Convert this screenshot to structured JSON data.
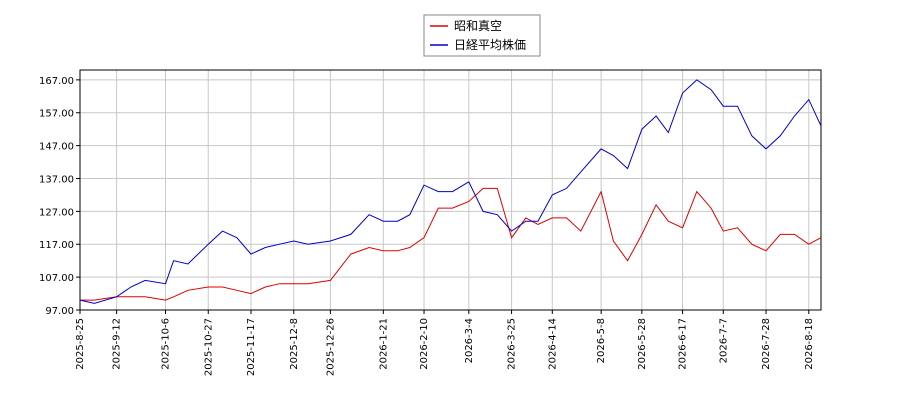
{
  "chart_data": {
    "type": "line",
    "x": [
      "2025-8-25",
      "2025-9-1",
      "2025-9-12",
      "2025-9-19",
      "2025-9-26",
      "2025-10-6",
      "2025-10-10",
      "2025-10-17",
      "2025-10-27",
      "2025-11-3",
      "2025-11-10",
      "2025-11-17",
      "2025-11-24",
      "2025-12-1",
      "2025-12-8",
      "2025-12-15",
      "2025-12-26",
      "2026-1-5",
      "2026-1-14",
      "2026-1-21",
      "2026-1-28",
      "2026-2-3",
      "2026-2-10",
      "2026-2-17",
      "2026-2-24",
      "2026-3-4",
      "2026-3-11",
      "2026-3-18",
      "2026-3-25",
      "2026-4-1",
      "2026-4-7",
      "2026-4-14",
      "2026-4-21",
      "2026-4-28",
      "2026-5-8",
      "2026-5-14",
      "2026-5-21",
      "2026-5-28",
      "2026-6-4",
      "2026-6-10",
      "2026-6-17",
      "2026-6-24",
      "2026-7-1",
      "2026-7-7",
      "2026-7-14",
      "2026-7-21",
      "2026-7-28",
      "2026-8-4",
      "2026-8-11",
      "2026-8-18",
      "2026-8-24"
    ],
    "series": [
      {
        "name": "昭和真空",
        "color": "#dd0000",
        "values": [
          100,
          100,
          101,
          101,
          101,
          100,
          101,
          103,
          104,
          104,
          103,
          102,
          104,
          105,
          105,
          105,
          106,
          114,
          116,
          115,
          115,
          116,
          119,
          128,
          128,
          130,
          134,
          134,
          119,
          125,
          123,
          125,
          125,
          121,
          133,
          118,
          112,
          120,
          129,
          124,
          122,
          133,
          128,
          121,
          122,
          117,
          115,
          120,
          120,
          117,
          119
        ]
      },
      {
        "name": "日経平均株価",
        "color": "#0000cc",
        "values": [
          100,
          99,
          101,
          104,
          106,
          105,
          112,
          111,
          117,
          121,
          119,
          114,
          116,
          117,
          118,
          117,
          118,
          120,
          126,
          124,
          124,
          126,
          135,
          133,
          133,
          136,
          127,
          126,
          121,
          124,
          124,
          132,
          134,
          139,
          146,
          144,
          140,
          152,
          156,
          151,
          163,
          167,
          164,
          159,
          159,
          150,
          146,
          150,
          156,
          161,
          153
        ]
      }
    ],
    "xlim": [
      "2025-8-25",
      "2026-8-24"
    ],
    "xticks": [
      "2025-8-25",
      "2025-9-12",
      "2025-10-6",
      "2025-10-27",
      "2025-11-17",
      "2025-12-8",
      "2025-12-26",
      "2026-1-21",
      "2026-2-10",
      "2026-3-4",
      "2026-3-25",
      "2026-4-14",
      "2026-5-8",
      "2026-5-28",
      "2026-6-17",
      "2026-7-7",
      "2026-7-28",
      "2026-8-18"
    ],
    "ylim": [
      97,
      170
    ],
    "yticks": [
      {
        "value": 97,
        "label": "97.00"
      },
      {
        "value": 107,
        "label": "107.00"
      },
      {
        "value": 117,
        "label": "117.00"
      },
      {
        "value": 127,
        "label": "127.00"
      },
      {
        "value": 137,
        "label": "137.00"
      },
      {
        "value": 147,
        "label": "147.00"
      },
      {
        "value": 157,
        "label": "157.00"
      },
      {
        "value": 167,
        "label": "167.00"
      }
    ],
    "grid": true,
    "legend": "top"
  }
}
